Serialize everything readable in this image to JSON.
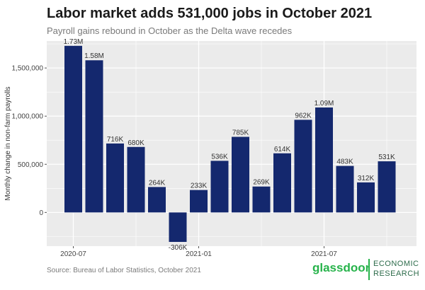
{
  "header": {
    "title": "Labor market adds 531,000 jobs in October 2021",
    "subtitle": "Payroll gains rebound in October as the Delta wave recedes"
  },
  "footer": {
    "source": "Source: Bureau of Labor Statistics, October 2021",
    "logo_word": "glassdoor",
    "logo_line1": "ECONOMIC",
    "logo_line2": "RESEARCH"
  },
  "colors": {
    "bar": "#14286e",
    "panel": "#ebebeb",
    "grid": "#ffffff",
    "brand": "#27b34b"
  },
  "chart_data": {
    "type": "bar",
    "title": "Labor market adds 531,000 jobs in October 2021",
    "subtitle": "Payroll gains rebound in October as the Delta wave recedes",
    "xlabel": "",
    "ylabel": "Monthly change in non-farm payrolls",
    "categories": [
      "2020-07",
      "2020-08",
      "2020-09",
      "2020-10",
      "2020-11",
      "2020-12",
      "2021-01",
      "2021-02",
      "2021-03",
      "2021-04",
      "2021-05",
      "2021-06",
      "2021-07",
      "2021-08",
      "2021-09",
      "2021-10"
    ],
    "values": [
      1730000,
      1580000,
      716000,
      680000,
      264000,
      -306000,
      233000,
      536000,
      785000,
      269000,
      614000,
      962000,
      1090000,
      483000,
      312000,
      531000
    ],
    "data_labels": [
      "1.73M",
      "1.58M",
      "716K",
      "680K",
      "264K",
      "-306K",
      "233K",
      "536K",
      "785K",
      "269K",
      "614K",
      "962K",
      "1.09M",
      "483K",
      "312K",
      "531K"
    ],
    "ylim": [
      -350000,
      1780000
    ],
    "yticks": [
      0,
      500000,
      1000000,
      1500000
    ],
    "ytick_labels": [
      "0",
      "500,000",
      "1,000,000",
      "1,500,000"
    ],
    "xticks": [
      {
        "category": "2020-07",
        "label": "2020-07"
      },
      {
        "category": "2021-01",
        "label": "2021-01"
      },
      {
        "category": "2021-07",
        "label": "2021-07"
      }
    ],
    "grid": true
  }
}
